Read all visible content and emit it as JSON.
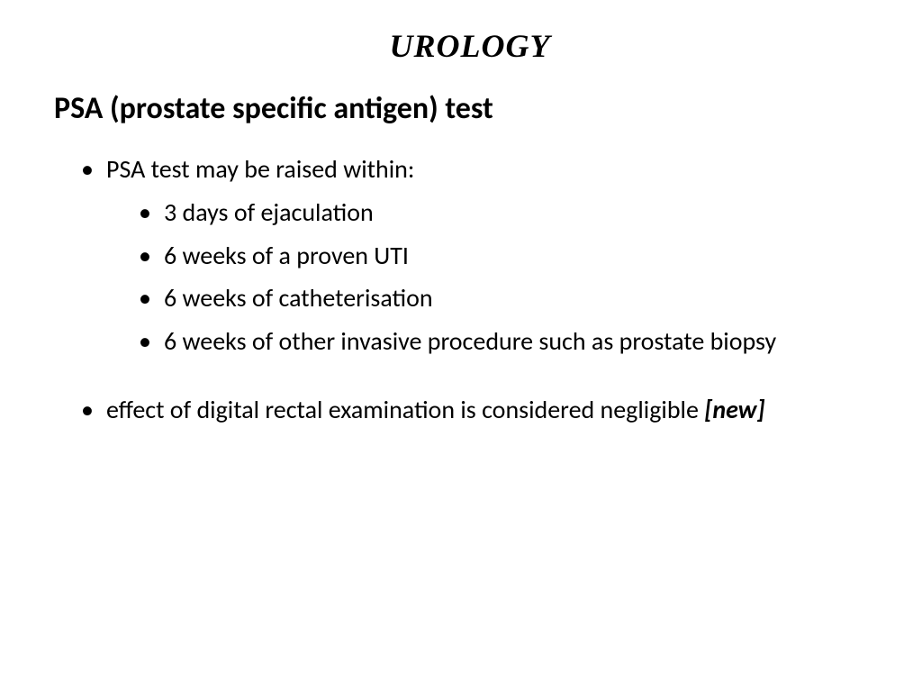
{
  "title": "UROLOGY",
  "subtitle": "PSA (prostate specific antigen) test",
  "bullet1": {
    "text": "PSA test may be raised within:",
    "sub": [
      "3 days of ejaculation",
      "6 weeks of a proven UTI",
      "6 weeks of catheterisation",
      "6 weeks of other invasive procedure such as prostate biopsy"
    ]
  },
  "bullet2": {
    "text": "effect of digital rectal examination is considered negligible ",
    "tag": "[new]"
  }
}
